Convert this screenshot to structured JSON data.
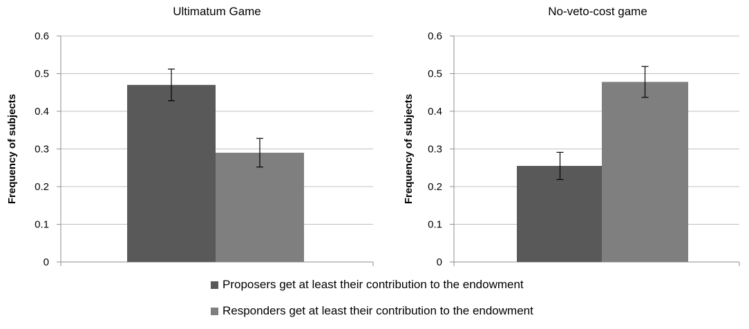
{
  "chart_data": [
    {
      "type": "bar",
      "title": "Ultimatum Game",
      "ylabel": "Frequency of subjects",
      "xlabel": "",
      "ylim": [
        0,
        0.6
      ],
      "yticks": [
        "0",
        "0.1",
        "0.2",
        "0.3",
        "0.4",
        "0.5",
        "0.6"
      ],
      "grid": true,
      "series": [
        {
          "name": "Proposers get at least their contribution to the endowment",
          "values": [
            0.47
          ],
          "error": [
            0.042
          ]
        },
        {
          "name": "Responders get at least their contribution to the endowment",
          "values": [
            0.29
          ],
          "error": [
            0.038
          ]
        }
      ]
    },
    {
      "type": "bar",
      "title": "No-veto-cost game",
      "ylabel": "Frequency of subjects",
      "xlabel": "",
      "ylim": [
        0,
        0.6
      ],
      "yticks": [
        "0",
        "0.1",
        "0.2",
        "0.3",
        "0.4",
        "0.5",
        "0.6"
      ],
      "grid": true,
      "series": [
        {
          "name": "Proposers get at least their contribution to the endowment",
          "values": [
            0.255
          ],
          "error": [
            0.036
          ]
        },
        {
          "name": "Responders get at least their contribution to the endowment",
          "values": [
            0.478
          ],
          "error": [
            0.041
          ]
        }
      ]
    }
  ],
  "legend": {
    "position": "bottom-center",
    "items": [
      {
        "label": "Proposers get at least their contribution to the endowment",
        "color": "#595959"
      },
      {
        "label": "Responders get at least their contribution to the endowment",
        "color": "#7f7f7f"
      }
    ]
  },
  "colors": {
    "series": [
      "#595959",
      "#7f7f7f"
    ],
    "grid": "#bfbfbf",
    "axis": "#8c8c8c"
  }
}
